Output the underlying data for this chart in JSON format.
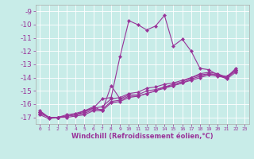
{
  "xlabel": "Windchill (Refroidissement éolien,°C)",
  "bg_color": "#c8ece8",
  "line_color": "#993399",
  "xlim": [
    -0.5,
    23.5
  ],
  "ylim": [
    -17.5,
    -8.5
  ],
  "yticks": [
    -17,
    -16,
    -15,
    -14,
    -13,
    -12,
    -11,
    -10,
    -9
  ],
  "xticks": [
    0,
    1,
    2,
    3,
    4,
    5,
    6,
    7,
    8,
    9,
    10,
    11,
    12,
    13,
    14,
    15,
    16,
    17,
    18,
    19,
    20,
    21,
    22,
    23
  ],
  "lines": [
    {
      "x": [
        0,
        1,
        2,
        3,
        4,
        5,
        6,
        7,
        8,
        9,
        10,
        11,
        12,
        13,
        14,
        15,
        16,
        17,
        18,
        19,
        20,
        21,
        22
      ],
      "y": [
        -16.5,
        -17.0,
        -17.0,
        -16.9,
        -16.8,
        -16.5,
        -16.3,
        -15.6,
        -15.5,
        -12.4,
        -9.7,
        -10.0,
        -10.4,
        -10.1,
        -9.3,
        -11.6,
        -11.1,
        -12.0,
        -13.3,
        -13.4,
        -13.8,
        -14.0,
        -13.3
      ]
    },
    {
      "x": [
        0,
        1,
        2,
        3,
        4,
        5,
        6,
        7,
        8,
        9,
        10,
        11,
        12,
        13,
        14,
        15,
        16,
        17,
        18,
        19,
        20,
        21,
        22
      ],
      "y": [
        -16.8,
        -17.1,
        -17.0,
        -17.0,
        -16.9,
        -16.8,
        -16.5,
        -16.5,
        -15.9,
        -15.8,
        -15.5,
        -15.4,
        -15.2,
        -15.0,
        -14.7,
        -14.6,
        -14.4,
        -14.1,
        -13.9,
        -13.7,
        -13.8,
        -14.1,
        -13.6
      ]
    },
    {
      "x": [
        0,
        1,
        2,
        3,
        4,
        5,
        6,
        7,
        8,
        9,
        10,
        11,
        12,
        13,
        14,
        15,
        16,
        17,
        18,
        19,
        20,
        21,
        22
      ],
      "y": [
        -16.7,
        -17.0,
        -17.0,
        -16.9,
        -16.8,
        -16.6,
        -16.3,
        -16.2,
        -15.6,
        -15.5,
        -15.2,
        -15.1,
        -14.8,
        -14.7,
        -14.5,
        -14.4,
        -14.2,
        -14.0,
        -13.7,
        -13.6,
        -13.7,
        -14.0,
        -13.4
      ]
    },
    {
      "x": [
        0,
        1,
        2,
        3,
        4,
        5,
        6,
        7,
        8,
        9,
        10,
        11,
        12,
        13,
        14,
        15,
        16,
        17,
        18,
        19,
        20,
        21,
        22
      ],
      "y": [
        -16.6,
        -17.0,
        -17.0,
        -16.8,
        -16.7,
        -16.5,
        -16.2,
        -16.5,
        -14.6,
        -15.6,
        -15.3,
        -15.3,
        -15.0,
        -14.9,
        -14.7,
        -14.5,
        -14.3,
        -14.0,
        -13.8,
        -13.7,
        -13.8,
        -13.9,
        -13.4
      ]
    },
    {
      "x": [
        0,
        1,
        2,
        3,
        4,
        5,
        6,
        7,
        8,
        9,
        10,
        11,
        12,
        13,
        14,
        15,
        16,
        17,
        18,
        19,
        20,
        21,
        22
      ],
      "y": [
        -16.6,
        -17.0,
        -17.0,
        -16.9,
        -16.8,
        -16.7,
        -16.4,
        -16.4,
        -15.8,
        -15.7,
        -15.4,
        -15.4,
        -15.2,
        -15.0,
        -14.8,
        -14.6,
        -14.4,
        -14.2,
        -14.0,
        -13.8,
        -13.9,
        -14.0,
        -13.5
      ]
    }
  ],
  "ytick_fontsize": 6.5,
  "xtick_fontsize": 4.5,
  "xlabel_fontsize": 6.0
}
